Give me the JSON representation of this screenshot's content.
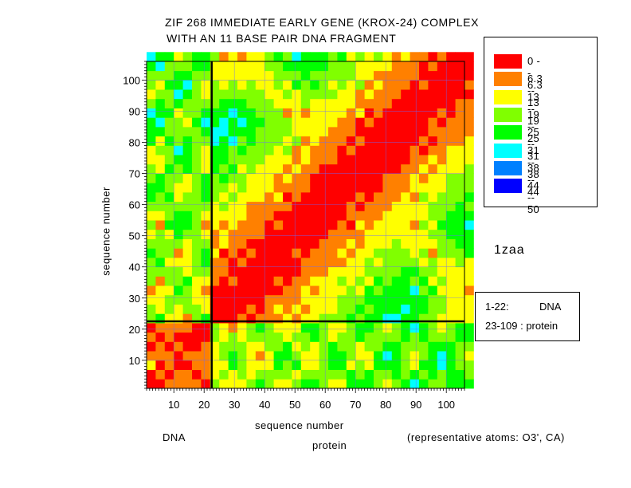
{
  "title_line1": "ZIF 268 IMMEDIATE EARLY GENE (KROX-24) COMPLEX",
  "title_line2": "WITH AN 11 BASE PAIR DNA FRAGMENT",
  "pdb_id": "1zaa",
  "dna_label": "DNA",
  "protein_label": "protein",
  "atoms_note": "(representative atoms: O3', CA)",
  "info_box": {
    "line1_range": "1-22:",
    "line1_type": "DNA",
    "line2": "23-109 : protein"
  },
  "chart_data": {
    "type": "heatmap",
    "xlabel": "sequence number",
    "ylabel": "sequence number",
    "xlim": [
      1,
      106
    ],
    "ylim": [
      1,
      106
    ],
    "x_ticks": [
      10,
      20,
      30,
      40,
      50,
      60,
      70,
      80,
      90,
      100
    ],
    "y_ticks": [
      10,
      20,
      30,
      40,
      50,
      60,
      70,
      80,
      90,
      100
    ],
    "grid": true,
    "boundary_at": 22.5,
    "legend_position": "top-right",
    "legend": [
      {
        "label": "0  --  6.3",
        "color": "#ff0000"
      },
      {
        "label": "6.3  --  13",
        "color": "#ff8000"
      },
      {
        "label": "13  --  19",
        "color": "#ffff00"
      },
      {
        "label": "19  --  25",
        "color": "#80ff00"
      },
      {
        "label": "25  --  31",
        "color": "#00ff00"
      },
      {
        "label": "31  --  38",
        "color": "#00ffff"
      },
      {
        "label": "38  --  44",
        "color": "#0080ff"
      },
      {
        "label": "44  --  50",
        "color": "#0000ff"
      }
    ]
  }
}
